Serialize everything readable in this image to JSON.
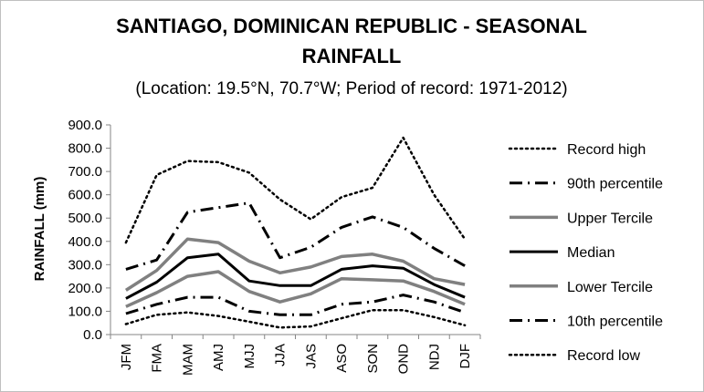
{
  "chart_data": {
    "type": "line",
    "title_line1": "SANTIAGO, DOMINICAN REPUBLIC - SEASONAL",
    "title_line2": "RAINFALL",
    "subtitle": "(Location: 19.5°N, 70.7°W; Period of record: 1971-2012)",
    "xlabel": "",
    "ylabel": "RAINFALL (mm)",
    "ylim": [
      0,
      900
    ],
    "ytick_step": 100,
    "yticks": [
      "0.0",
      "100.0",
      "200.0",
      "300.0",
      "400.0",
      "500.0",
      "600.0",
      "700.0",
      "800.0",
      "900.0"
    ],
    "grid": false,
    "legend_position": "right",
    "categories": [
      "JFM",
      "FMA",
      "MAM",
      "AMJ",
      "MJJ",
      "JJA",
      "JAS",
      "ASO",
      "SON",
      "OND",
      "NDJ",
      "DJF"
    ],
    "series": [
      {
        "name": "Record high",
        "style": "dotted",
        "color": "#000000",
        "values": [
          395,
          685,
          745,
          740,
          695,
          580,
          495,
          590,
          630,
          845,
          600,
          410
        ]
      },
      {
        "name": "90th percentile",
        "style": "dashdot",
        "color": "#000000",
        "values": [
          280,
          320,
          525,
          545,
          565,
          330,
          375,
          460,
          505,
          460,
          370,
          295
        ]
      },
      {
        "name": "Upper Tercile",
        "style": "solid",
        "color": "#808080",
        "values": [
          190,
          275,
          410,
          395,
          315,
          265,
          290,
          335,
          345,
          315,
          240,
          215
        ]
      },
      {
        "name": "Median",
        "style": "solid",
        "color": "#000000",
        "values": [
          155,
          225,
          330,
          345,
          230,
          210,
          210,
          280,
          295,
          285,
          215,
          160
        ]
      },
      {
        "name": "Lower Tercile",
        "style": "solid",
        "color": "#808080",
        "values": [
          120,
          180,
          250,
          270,
          185,
          140,
          175,
          240,
          235,
          230,
          185,
          130
        ]
      },
      {
        "name": "10th percentile",
        "style": "dashdot",
        "color": "#000000",
        "values": [
          90,
          130,
          160,
          160,
          100,
          85,
          85,
          130,
          140,
          170,
          140,
          95
        ]
      },
      {
        "name": "Record low",
        "style": "dotted",
        "color": "#000000",
        "values": [
          45,
          85,
          95,
          80,
          55,
          30,
          35,
          70,
          105,
          105,
          75,
          40
        ]
      }
    ]
  }
}
